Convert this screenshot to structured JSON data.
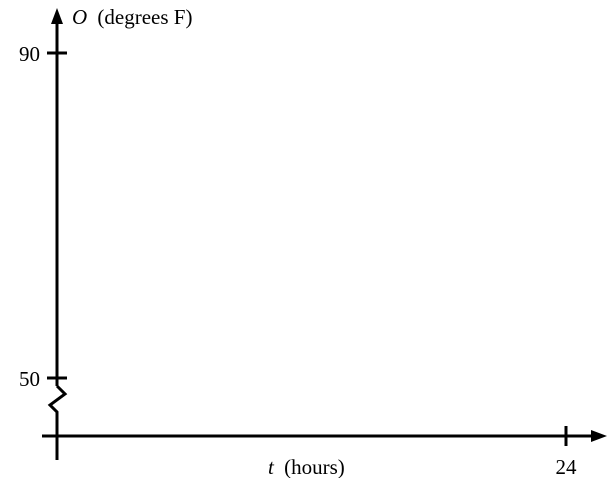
{
  "chart_data": {
    "type": "line",
    "title": "",
    "x_axis": {
      "variable": "t",
      "unit": "(hours)",
      "ticks": [
        24
      ],
      "tick_labels": [
        "24"
      ],
      "range": [
        0,
        24
      ]
    },
    "y_axis": {
      "variable": "O",
      "unit": "(degrees F)",
      "ticks": [
        50,
        90
      ],
      "tick_labels": [
        "50",
        "90"
      ],
      "range": [
        50,
        90
      ],
      "axis_break_below": true
    },
    "series": [],
    "grid": false,
    "legend": "none"
  },
  "colors": {
    "axis": "#000000",
    "background": "#ffffff"
  }
}
